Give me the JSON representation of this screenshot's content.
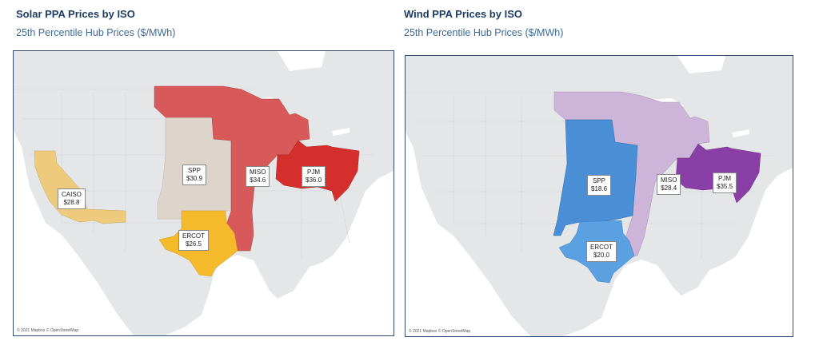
{
  "solar": {
    "title": "Solar PPA Prices by ISO",
    "subtitle": "25th Percentile Hub Prices ($/MWh)",
    "attribution": "© 2021 Mapbox © OpenStreetMap",
    "regions": [
      {
        "name": "CAISO",
        "price": "$28.8",
        "color": "#eecb7c"
      },
      {
        "name": "SPP",
        "price": "$30.9",
        "color": "#ddd5cc"
      },
      {
        "name": "MISO",
        "price": "$34.6",
        "color": "#d8595a"
      },
      {
        "name": "PJM",
        "price": "$36.0",
        "color": "#d42f2c"
      },
      {
        "name": "ERCOT",
        "price": "$26.5",
        "color": "#f5b92c"
      }
    ]
  },
  "wind": {
    "title": "Wind PPA Prices by ISO",
    "subtitle": "25th Percentile Hub Prices ($/MWh)",
    "attribution": "© 2021 Mapbox © OpenStreetMap",
    "regions": [
      {
        "name": "SPP",
        "price": "$18.6",
        "color": "#4a8fd6"
      },
      {
        "name": "MISO",
        "price": "$28.4",
        "color": "#cdb4d9"
      },
      {
        "name": "PJM",
        "price": "$35.5",
        "color": "#8a3fa6"
      },
      {
        "name": "ERCOT",
        "price": "$20.0",
        "color": "#5ba0e0"
      }
    ]
  },
  "colors": {
    "land": "#e4e6e8",
    "water": "#ffffff",
    "border": "#2f4e73",
    "title": "#1d3d63",
    "subtitle": "#3d6a94"
  }
}
